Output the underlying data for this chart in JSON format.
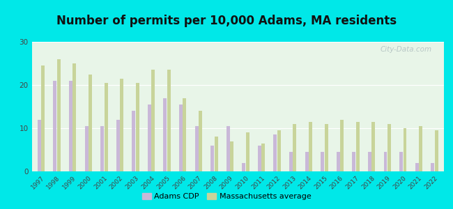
{
  "title": "Number of permits per 10,000 Adams, MA residents",
  "years": [
    1997,
    1998,
    1999,
    2000,
    2001,
    2002,
    2003,
    2004,
    2005,
    2006,
    2007,
    2008,
    2009,
    2010,
    2011,
    2012,
    2013,
    2014,
    2015,
    2016,
    2017,
    2018,
    2019,
    2020,
    2021,
    2022
  ],
  "adams_cdp": [
    12,
    21,
    21,
    10.5,
    10.5,
    12,
    14,
    15.5,
    17,
    15.5,
    10.5,
    6,
    10.5,
    2,
    6,
    8.5,
    4.5,
    4.5,
    4.5,
    4.5,
    4.5,
    4.5,
    4.5,
    4.5,
    2,
    2
  ],
  "ma_avg": [
    24.5,
    26,
    25,
    22.5,
    20.5,
    21.5,
    20.5,
    23.5,
    23.5,
    17,
    14,
    8,
    7,
    9,
    6.5,
    9.5,
    11,
    11.5,
    11,
    12,
    11.5,
    11.5,
    11,
    10,
    10.5,
    9.5
  ],
  "adams_color": "#c9b8d8",
  "ma_color": "#c8d49a",
  "bg_color_outer": "#00e8e8",
  "bg_color_plot_top": "#e8f5e8",
  "bg_color_plot_bottom": "#d8ede8",
  "title_fontsize": 12,
  "ylim": [
    0,
    30
  ],
  "yticks": [
    0,
    10,
    20,
    30
  ],
  "legend_labels": [
    "Adams CDP",
    "Massachusetts average"
  ],
  "watermark": "City-Data.com"
}
